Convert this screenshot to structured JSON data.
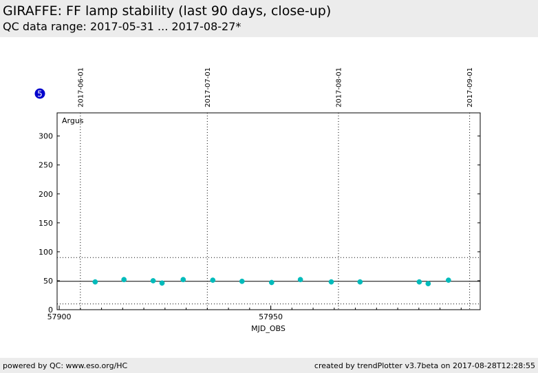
{
  "header": {
    "title": "GIRAFFE: FF lamp stability (last 90 days, close-up)",
    "subtitle": "QC data range: 2017-05-31 ... 2017-08-27*"
  },
  "footer": {
    "left": "powered by QC: www.eso.org/HC",
    "right": "created by trendPlotter v3.7beta on 2017-08-28T12:28:55"
  },
  "badge": {
    "text": "5",
    "color": "#0000cc"
  },
  "chart_data": {
    "type": "scatter",
    "title": "",
    "xlabel": "MJD_OBS",
    "ylabel": "",
    "xlim": [
      57899.5,
      57999.5
    ],
    "ylim": [
      0,
      340
    ],
    "xticks": [
      57900,
      57950
    ],
    "xtick_labels": [
      "57900",
      "57950"
    ],
    "yticks": [
      0,
      50,
      100,
      150,
      200,
      250,
      300
    ],
    "ytick_labels": [
      "0",
      "50",
      "100",
      "150",
      "200",
      "250",
      "300"
    ],
    "date_markers": [
      {
        "mjd": 57905,
        "label": "2017-06-01"
      },
      {
        "mjd": 57935,
        "label": "2017-07-01"
      },
      {
        "mjd": 57966,
        "label": "2017-08-01"
      },
      {
        "mjd": 57997,
        "label": "2017-09-01"
      }
    ],
    "reference_lines": {
      "mean": 49,
      "upper": 90,
      "lower": 10
    },
    "panel_label": "Argus",
    "series": [
      {
        "color": "#00bbbb",
        "x": [
          57908.5,
          57915.3,
          57922.2,
          57924.3,
          57929.3,
          57936.3,
          57943.2,
          57950.2,
          57957.0,
          57964.3,
          57971.1,
          57985.1,
          57987.2,
          57992.0
        ],
        "y": [
          48,
          52,
          50,
          46,
          52,
          51,
          49,
          47,
          52,
          48,
          48,
          48,
          45,
          51
        ]
      }
    ],
    "grid": false,
    "legend": "none"
  }
}
